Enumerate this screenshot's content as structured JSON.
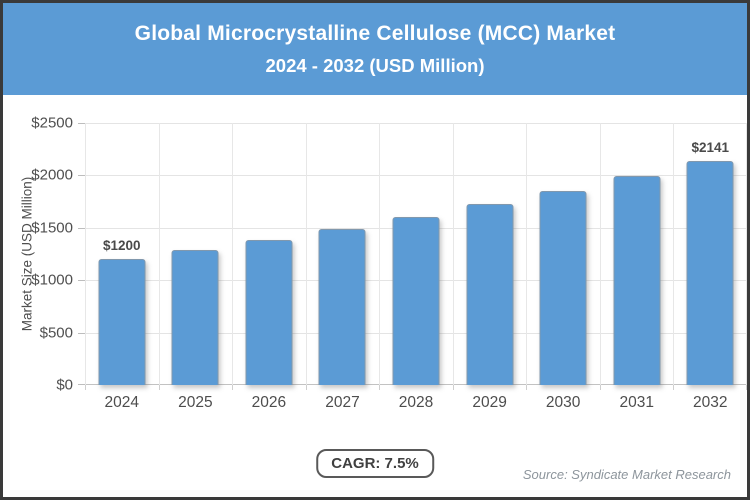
{
  "header": {
    "title_line1": "Global Microcrystalline Cellulose (MCC) Market",
    "title_line2": "2024 - 2032 (USD Million)",
    "background_color": "#5b9bd5",
    "text_color": "#ffffff"
  },
  "chart_data": {
    "type": "bar",
    "title": "Global Microcrystalline Cellulose (MCC) Market 2024 - 2032 (USD Million)",
    "categories": [
      "2024",
      "2025",
      "2026",
      "2027",
      "2028",
      "2029",
      "2030",
      "2031",
      "2032"
    ],
    "values": [
      1200,
      1290,
      1387,
      1491,
      1603,
      1723,
      1852,
      1991,
      2141
    ],
    "value_labels": [
      {
        "index": 0,
        "label": "$1200"
      },
      {
        "index": 8,
        "label": "$2141"
      }
    ],
    "xlabel": "",
    "ylabel": "Market Size (USD Million)",
    "ylim": [
      0,
      2500
    ],
    "y_ticks": [
      "$2500",
      "$2000",
      "$1500",
      "$1000",
      "$500",
      "$0"
    ],
    "grid": true,
    "legend": "none",
    "bar_color": "#5b9bd5"
  },
  "footer": {
    "cagr_label": "CAGR: 7.5%",
    "source": "Source: Syndicate Market Research"
  }
}
